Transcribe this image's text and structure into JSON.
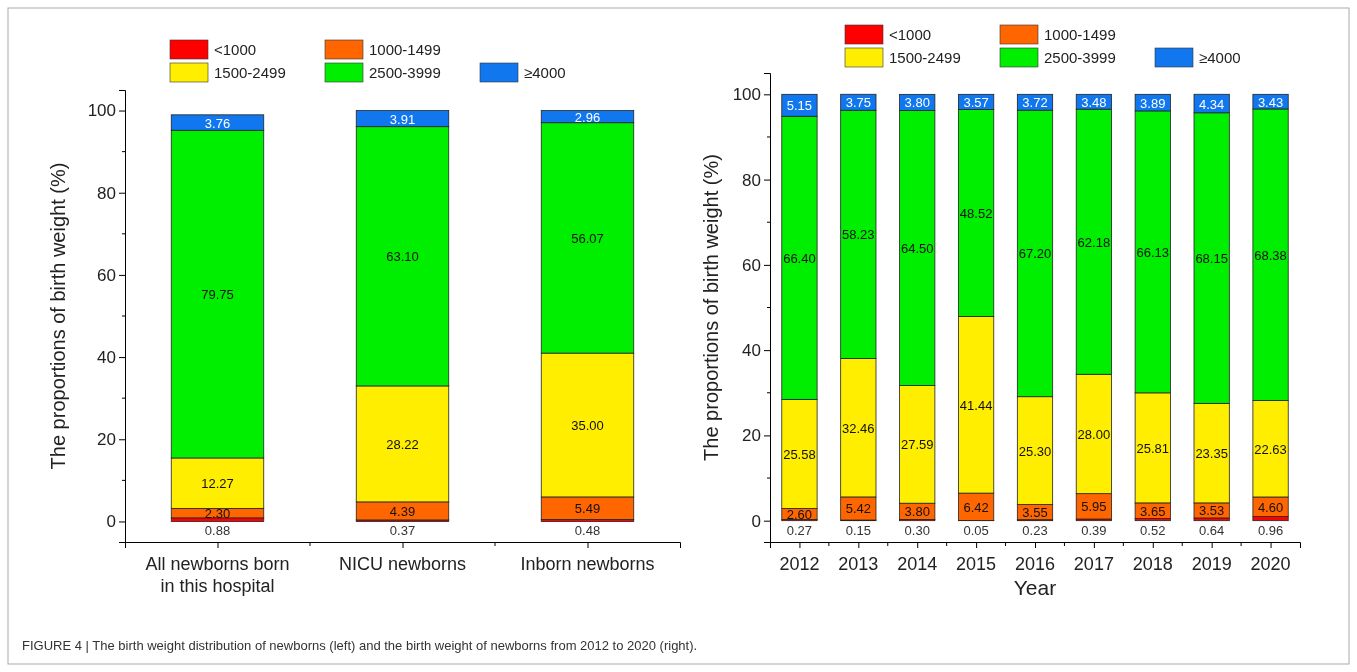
{
  "chart_data": [
    {
      "type": "bar",
      "stacked": true,
      "legend": "top",
      "grid": false,
      "ylabel": "The proportions of birth weight (%)",
      "categories": [
        "All newborns born\nin this hospital",
        "NICU newborns",
        "Inborn newborns"
      ],
      "ylim": [
        -5,
        105
      ],
      "yticks": [
        0,
        20,
        40,
        60,
        80,
        100
      ],
      "series": [
        {
          "name": "<1000",
          "color": "#ff0000",
          "values": [
            0.88,
            0.37,
            0.48
          ],
          "value_labels": [
            "0.88",
            "0.37",
            "0.48"
          ]
        },
        {
          "name": "1000-1499",
          "color": "#ff6600",
          "values": [
            2.3,
            4.39,
            5.49
          ],
          "value_labels": [
            "2.30",
            "4.39",
            "5.49"
          ]
        },
        {
          "name": "1500-2499",
          "color": "#ffee00",
          "values": [
            12.27,
            28.22,
            35.0
          ],
          "value_labels": [
            "12.27",
            "28.22",
            "35.00"
          ]
        },
        {
          "name": "2500-3999",
          "color": "#00ee00",
          "values": [
            79.75,
            63.1,
            56.07
          ],
          "value_labels": [
            "79.75",
            "63.10",
            "56.07"
          ]
        },
        {
          "name": "≥4000",
          "color": "#1177ee",
          "values": [
            3.76,
            3.91,
            2.96
          ],
          "value_labels": [
            "3.76",
            "3.91",
            "2.96"
          ]
        }
      ],
      "annotations": [
        "FIGURE 4 | The birth weight distribution of newborns (left) and the birth weight of newborns from 2012 to 2020 (right)."
      ]
    },
    {
      "type": "bar",
      "stacked": true,
      "legend": "top",
      "grid": false,
      "xlabel": "Year",
      "ylabel": "The proportions of birth weight (%)",
      "categories": [
        "2012",
        "2013",
        "2014",
        "2015",
        "2016",
        "2017",
        "2018",
        "2019",
        "2020"
      ],
      "ylim": [
        -5,
        105
      ],
      "yticks": [
        0,
        20,
        40,
        60,
        80,
        100
      ],
      "series": [
        {
          "name": "<1000",
          "color": "#ff0000",
          "values": [
            0.27,
            0.15,
            0.3,
            0.05,
            0.23,
            0.39,
            0.52,
            0.64,
            0.96
          ],
          "value_labels": [
            "0.27",
            "0.15",
            "0.30",
            "0.05",
            "0.23",
            "0.39",
            "0.52",
            "0.64",
            "0.96"
          ]
        },
        {
          "name": "1000-1499",
          "color": "#ff6600",
          "values": [
            2.6,
            5.42,
            3.8,
            6.42,
            3.55,
            5.95,
            3.65,
            3.53,
            4.6
          ],
          "value_labels": [
            "2.60",
            "5.42",
            "3.80",
            "6.42",
            "3.55",
            "5.95",
            "3.65",
            "3.53",
            "4.60"
          ]
        },
        {
          "name": "1500-2499",
          "color": "#ffee00",
          "values": [
            25.58,
            32.46,
            27.59,
            41.44,
            25.3,
            28.0,
            25.81,
            23.35,
            22.63
          ],
          "value_labels": [
            "25.58",
            "32.46",
            "27.59",
            "41.44",
            "25.30",
            "28.00",
            "25.81",
            "23.35",
            "22.63"
          ]
        },
        {
          "name": "2500-3999",
          "color": "#00ee00",
          "values": [
            66.4,
            58.23,
            64.5,
            48.52,
            67.2,
            62.18,
            66.13,
            68.15,
            68.38
          ],
          "value_labels": [
            "66.40",
            "58.23",
            "64.50",
            "48.52",
            "67.20",
            "62.18",
            "66.13",
            "68.15",
            "68.38"
          ]
        },
        {
          "name": "≥4000",
          "color": "#1177ee",
          "values": [
            5.15,
            3.75,
            3.8,
            3.57,
            3.72,
            3.48,
            3.89,
            4.34,
            3.43
          ],
          "value_labels": [
            "5.15",
            "3.75",
            "3.80",
            "3.57",
            "3.72",
            "3.48",
            "3.89",
            "4.34",
            "3.43"
          ]
        }
      ]
    }
  ]
}
